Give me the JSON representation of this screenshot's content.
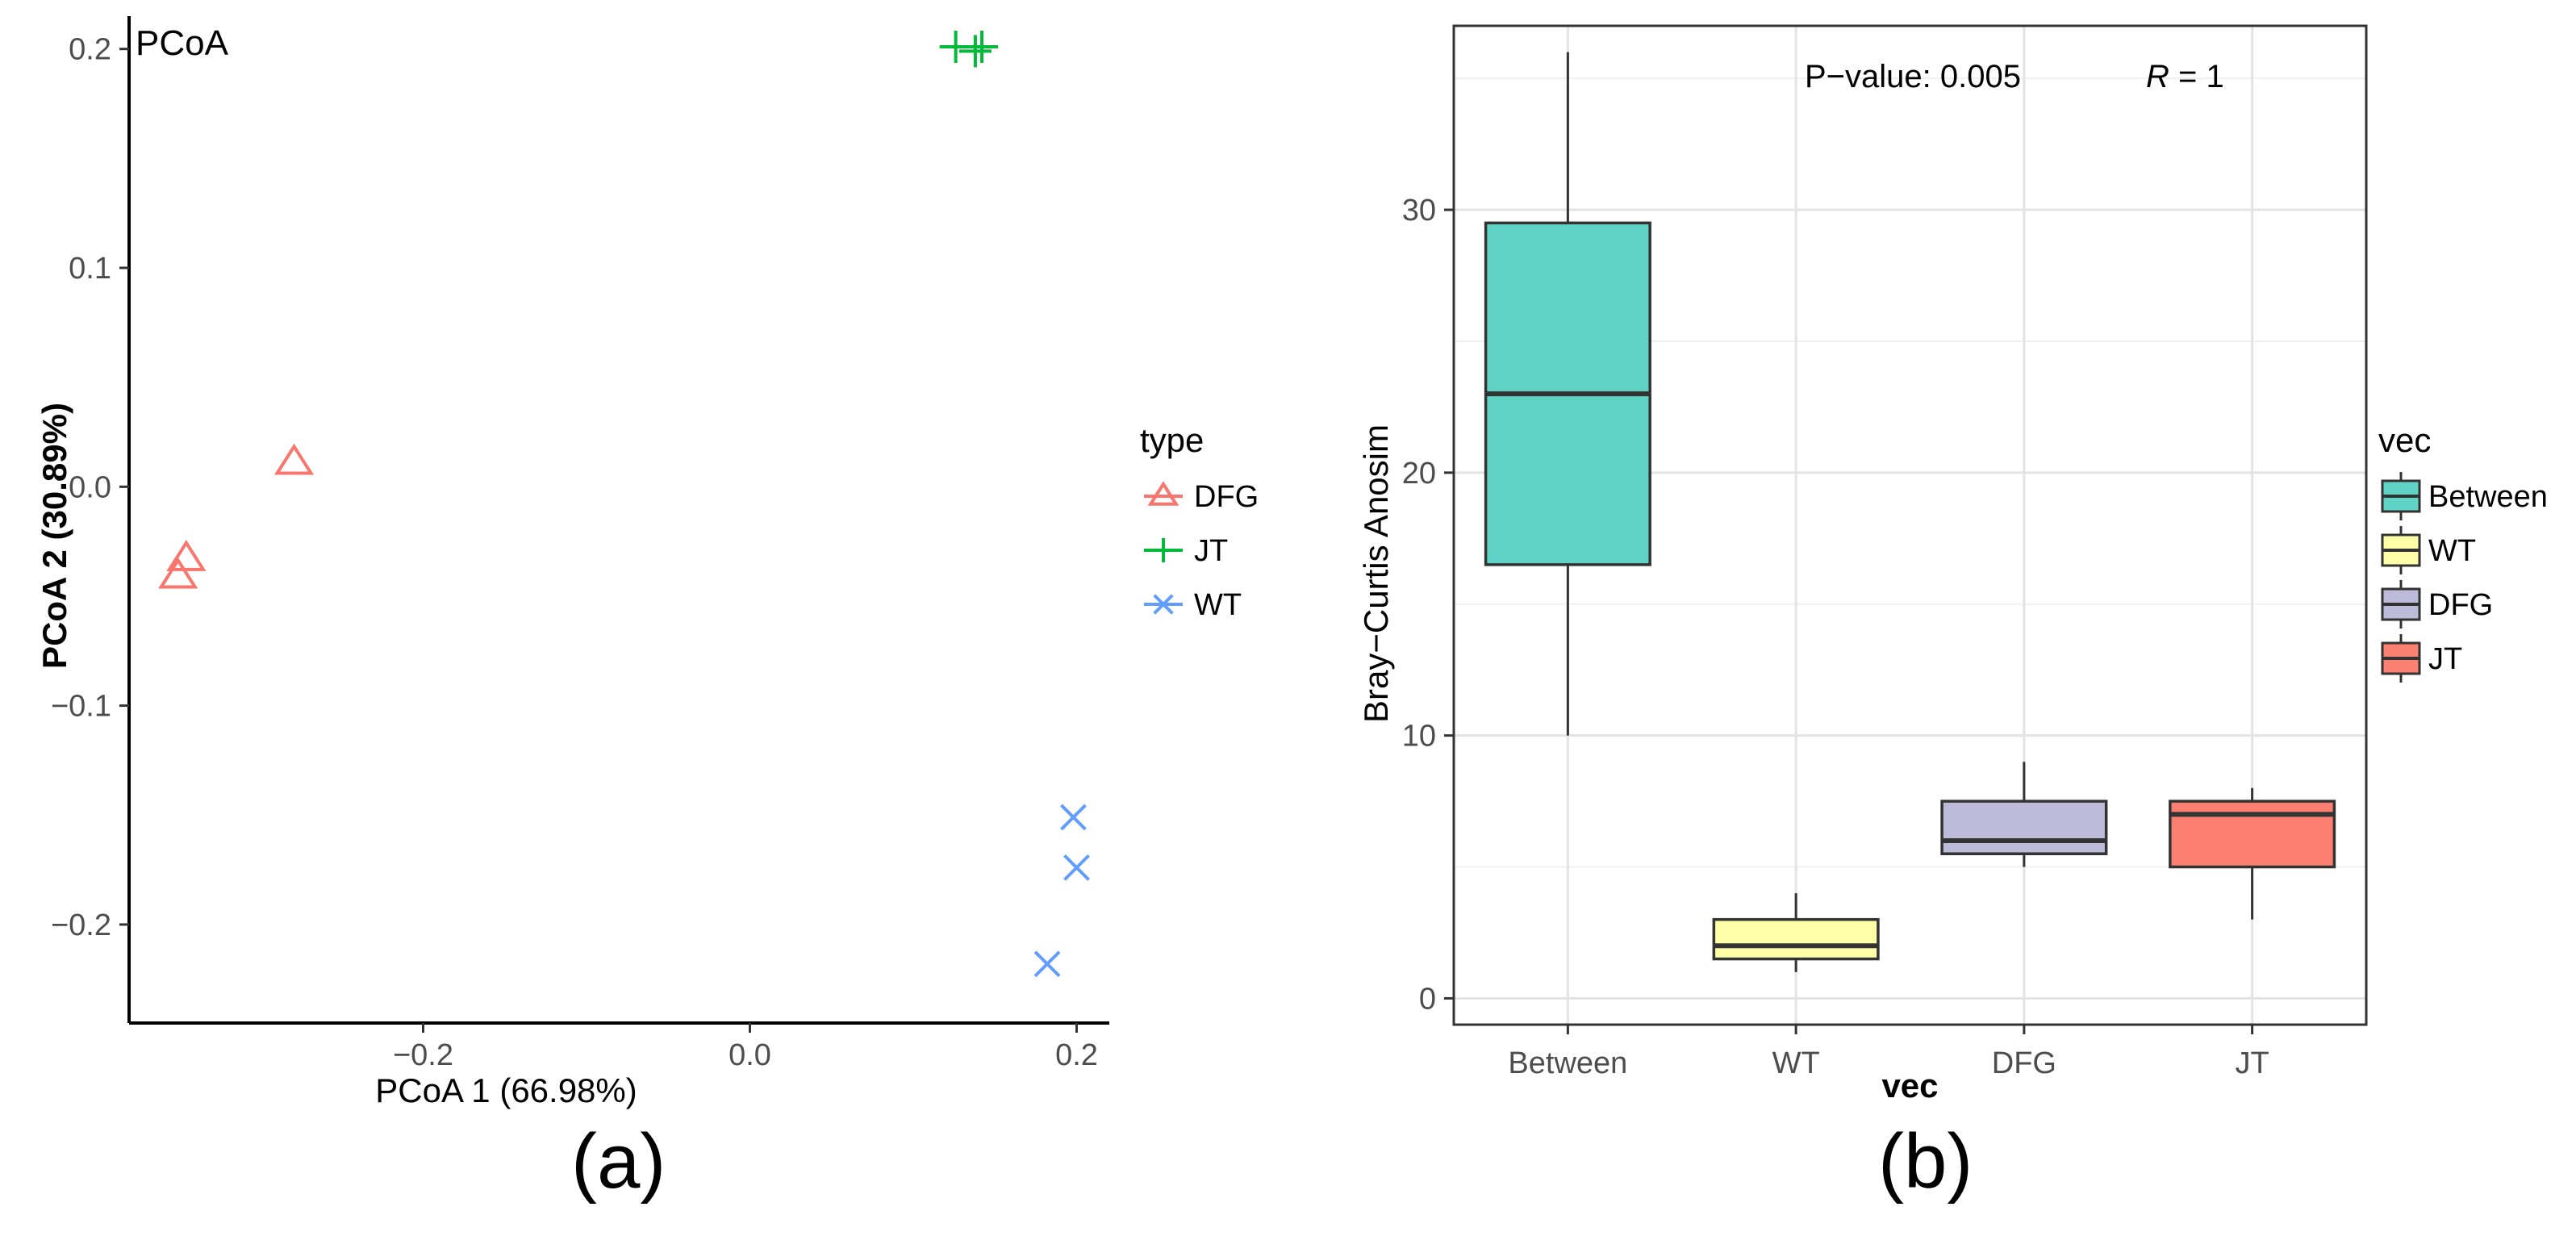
{
  "chart_data": [
    {
      "type": "scatter",
      "title": "PCoA",
      "xlabel": "PCoA 1 (66.98%)",
      "ylabel": "PCoA 2 (30.89%)",
      "xlim": [
        -0.38,
        0.22
      ],
      "ylim": [
        -0.245,
        0.215
      ],
      "xticks": [
        -0.2,
        0.0,
        0.2
      ],
      "xtick_labels": [
        "−0.2",
        "0.0",
        "0.2"
      ],
      "yticks": [
        -0.2,
        -0.1,
        0.0,
        0.1,
        0.2
      ],
      "ytick_labels": [
        "−0.2",
        "−0.1",
        "0.0",
        "0.1",
        "0.2"
      ],
      "grid": false,
      "legend_title": "type",
      "legend_position": "right",
      "series": [
        {
          "name": "DFG",
          "marker": "triangle",
          "color": "#F8766D",
          "points": [
            [
              -0.279,
              0.011
            ],
            [
              -0.345,
              -0.033
            ],
            [
              -0.35,
              -0.041
            ]
          ]
        },
        {
          "name": "JT",
          "marker": "plus",
          "color": "#00BA38",
          "points": [
            [
              0.126,
              0.201
            ],
            [
              0.138,
              0.199
            ],
            [
              0.142,
              0.201
            ]
          ]
        },
        {
          "name": "WT",
          "marker": "cross",
          "color": "#619CFF",
          "points": [
            [
              0.198,
              -0.151
            ],
            [
              0.2,
              -0.174
            ],
            [
              0.182,
              -0.218
            ]
          ]
        }
      ],
      "caption": "(a)"
    },
    {
      "type": "box",
      "title": "",
      "xlabel": "vec",
      "ylabel": "Bray−Curtis Anosim",
      "ylim": [
        -1,
        37
      ],
      "yticks": [
        0,
        10,
        20,
        30
      ],
      "ytick_labels": [
        "0",
        "10",
        "20",
        "30"
      ],
      "grid": true,
      "categories": [
        "Between",
        "WT",
        "DFG",
        "JT"
      ],
      "boxes": [
        {
          "name": "Between",
          "min": 10,
          "q1": 16.5,
          "median": 23,
          "q3": 29.5,
          "max": 36,
          "color": "#5FD3C6"
        },
        {
          "name": "WT",
          "min": 1,
          "q1": 1.5,
          "median": 2,
          "q3": 3,
          "max": 4,
          "color": "#FFFFA8"
        },
        {
          "name": "DFG",
          "min": 5,
          "q1": 5.5,
          "median": 6,
          "q3": 7.5,
          "max": 9,
          "color": "#BEBADA"
        },
        {
          "name": "JT",
          "min": 3,
          "q1": 5,
          "median": 7,
          "q3": 7.5,
          "max": 8,
          "color": "#FB8072"
        }
      ],
      "annotation_pvalue": "P−value: 0.005",
      "annotation_r_symbol": "R",
      "annotation_r_value": " = 1",
      "legend_title": "vec",
      "legend_position": "right",
      "caption": "(b)"
    }
  ]
}
